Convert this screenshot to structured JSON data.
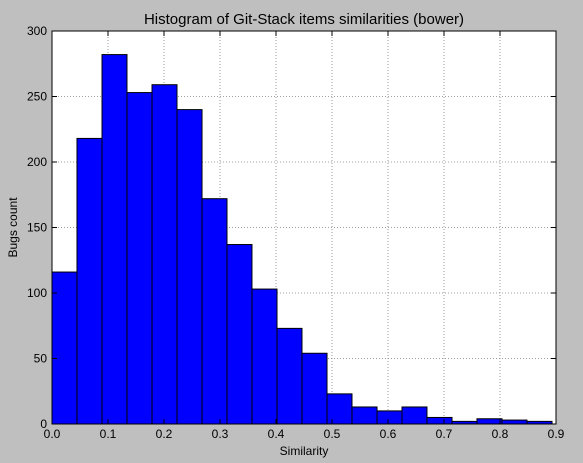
{
  "colors": {
    "figure_background": "#bfbfbf",
    "plot_background": "#ffffff",
    "bar_fill": "#0000ff",
    "bar_edge": "#000000",
    "grid": "#808080"
  },
  "chart_data": {
    "type": "bar",
    "title": "Histogram of Git-Stack items similarities (bower)",
    "xlabel": "Similarity",
    "ylabel": "Bugs count",
    "xlim": [
      0.0,
      0.9
    ],
    "ylim": [
      0,
      300
    ],
    "grid": true,
    "bin_edges": [
      0.0,
      0.0446,
      0.0893,
      0.1339,
      0.1786,
      0.2232,
      0.2679,
      0.3125,
      0.3571,
      0.4018,
      0.4464,
      0.4911,
      0.5357,
      0.5804,
      0.625,
      0.6696,
      0.7143,
      0.7589,
      0.8036,
      0.8482,
      0.8929
    ],
    "values": [
      116,
      218,
      282,
      253,
      259,
      240,
      172,
      137,
      103,
      73,
      54,
      23,
      13,
      10,
      13,
      5,
      2,
      4,
      3,
      2
    ],
    "x_ticks": [
      {
        "value": 0.0,
        "label": "0.0"
      },
      {
        "value": 0.1,
        "label": "0.1"
      },
      {
        "value": 0.2,
        "label": "0.2"
      },
      {
        "value": 0.3,
        "label": "0.3"
      },
      {
        "value": 0.4,
        "label": "0.4"
      },
      {
        "value": 0.5,
        "label": "0.5"
      },
      {
        "value": 0.6,
        "label": "0.6"
      },
      {
        "value": 0.7,
        "label": "0.7"
      },
      {
        "value": 0.8,
        "label": "0.8"
      },
      {
        "value": 0.9,
        "label": "0.9"
      }
    ],
    "y_ticks": [
      {
        "value": 0,
        "label": "0"
      },
      {
        "value": 50,
        "label": "50"
      },
      {
        "value": 100,
        "label": "100"
      },
      {
        "value": 150,
        "label": "150"
      },
      {
        "value": 200,
        "label": "200"
      },
      {
        "value": 250,
        "label": "250"
      },
      {
        "value": 300,
        "label": "300"
      }
    ]
  }
}
